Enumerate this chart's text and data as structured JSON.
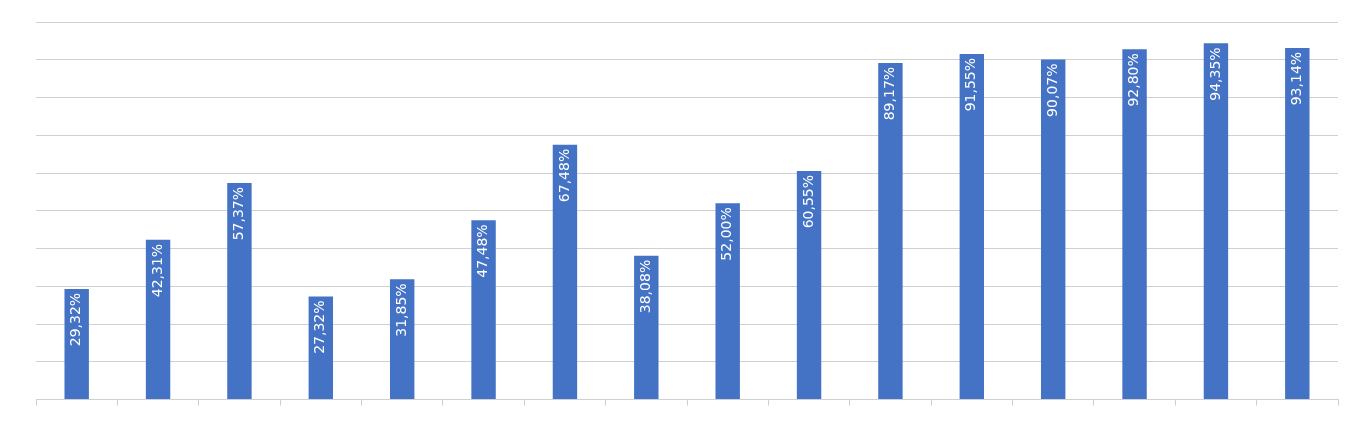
{
  "chart_data": {
    "type": "bar",
    "categories": [
      null,
      null,
      null,
      null,
      null,
      null,
      null,
      null,
      null,
      null,
      null,
      null,
      null,
      null,
      null,
      null
    ],
    "values": [
      29.32,
      42.31,
      57.37,
      27.32,
      31.85,
      47.48,
      67.48,
      38.08,
      52.0,
      60.55,
      89.17,
      91.55,
      90.07,
      92.8,
      94.35,
      93.14
    ],
    "value_labels": [
      "29,32%",
      "42,31%",
      "57,37%",
      "27,32%",
      "31,85%",
      "47,48%",
      "67,48%",
      "38,08%",
      "52,00%",
      "60,55%",
      "89,17%",
      "91,55%",
      "90,07%",
      "92,80%",
      "94,35%",
      "93,14%"
    ],
    "color": "#4472c4",
    "ylim": [
      0,
      100
    ],
    "yticks": [
      {
        "value": 0,
        "label": null
      },
      {
        "value": 10,
        "label": null
      },
      {
        "value": 20,
        "label": null
      },
      {
        "value": 30,
        "label": null
      },
      {
        "value": 40,
        "label": null
      },
      {
        "value": 50,
        "label": null
      },
      {
        "value": 60,
        "label": null
      },
      {
        "value": 70,
        "label": null
      },
      {
        "value": 80,
        "label": null
      },
      {
        "value": 90,
        "label": null
      },
      {
        "value": 100,
        "label": null
      }
    ],
    "grid": "y"
  }
}
